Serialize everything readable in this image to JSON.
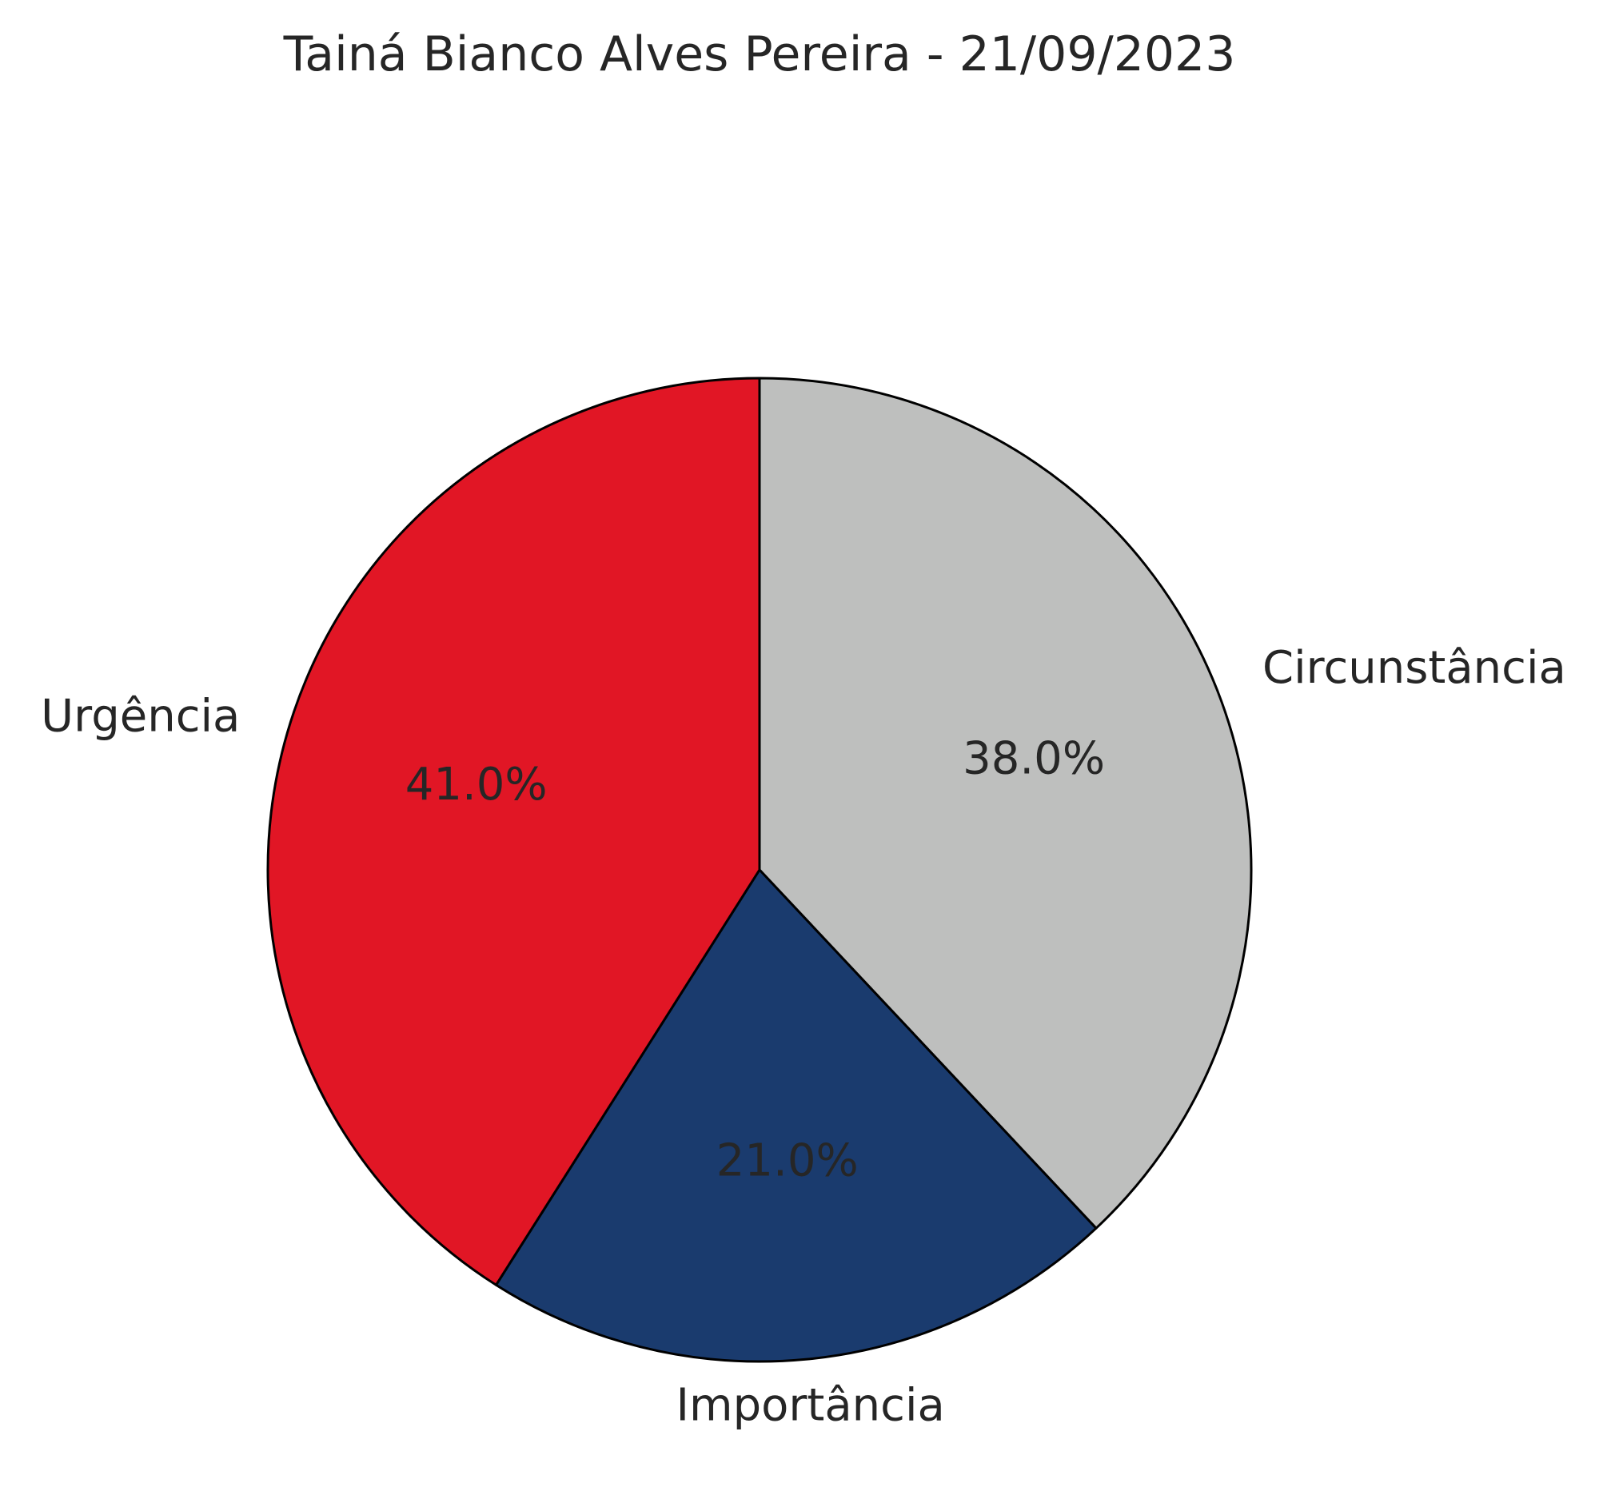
{
  "chart_data": {
    "type": "pie",
    "title": "Tainá Bianco Alves Pereira - 21/09/2023",
    "slices": [
      {
        "label": "Circunstância",
        "value": 38.0,
        "percent_label": "38.0%",
        "color": "#bebfbe"
      },
      {
        "label": "Importância",
        "value": 21.0,
        "percent_label": "21.0%",
        "color": "#1a3b6e"
      },
      {
        "label": "Urgência",
        "value": 41.0,
        "percent_label": "41.0%",
        "color": "#e11625"
      }
    ],
    "start_angle": "12 o'clock",
    "direction": "clockwise",
    "edge_color": "#000000",
    "legend": "none"
  }
}
